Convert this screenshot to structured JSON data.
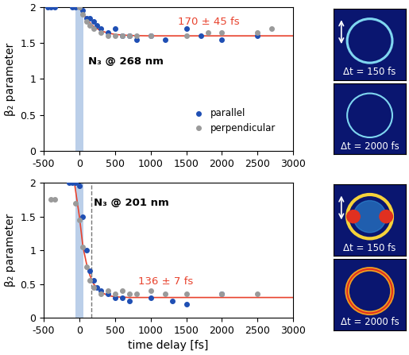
{
  "chart_data": [
    {
      "type": "scatter",
      "y_label": "β₂ parameter",
      "xlim": [
        -500,
        3000
      ],
      "xticks": [
        -500,
        0,
        500,
        1000,
        1500,
        2000,
        2500,
        3000
      ],
      "ylim": [
        0,
        2
      ],
      "yticks": [
        0,
        0.5,
        1,
        1.5,
        2
      ],
      "legend": "lower right",
      "annotations": [
        {
          "text": "N₃ @ 268 nm",
          "color": "#000000"
        },
        {
          "text": "170 ± 45 fs",
          "color": "#e8432e"
        }
      ],
      "shaded_region": [
        -60,
        60
      ],
      "series": [
        {
          "name": "parallel",
          "color": "#1f4fb4",
          "marker": "o",
          "x": [
            -450,
            -400,
            -350,
            -100,
            -50,
            50,
            100,
            150,
            200,
            250,
            300,
            400,
            500,
            600,
            700,
            800,
            1000,
            1200,
            1500,
            1700,
            2000,
            2500
          ],
          "values": [
            2.0,
            2.0,
            2.0,
            2.0,
            2.0,
            1.95,
            1.85,
            1.85,
            1.8,
            1.75,
            1.7,
            1.65,
            1.7,
            1.6,
            1.6,
            1.55,
            1.6,
            1.55,
            1.7,
            1.6,
            1.55,
            1.6
          ]
        },
        {
          "name": "perpendicular",
          "color": "#9a9a9a",
          "marker": "o",
          "x": [
            0,
            50,
            100,
            150,
            200,
            300,
            400,
            500,
            600,
            700,
            800,
            1000,
            1500,
            1800,
            2000,
            2500,
            2700
          ],
          "values": [
            2.0,
            1.9,
            1.8,
            1.75,
            1.7,
            1.65,
            1.6,
            1.6,
            1.6,
            1.6,
            1.6,
            1.6,
            1.6,
            1.65,
            1.65,
            1.65,
            1.7
          ]
        }
      ],
      "fit": {
        "color": "#e8432e",
        "x": [
          0,
          50,
          100,
          150,
          200,
          300,
          400,
          500,
          700,
          1000,
          1500,
          2000,
          2500,
          3000
        ],
        "values": [
          2.0,
          1.91,
          1.84,
          1.78,
          1.73,
          1.67,
          1.64,
          1.62,
          1.605,
          1.6,
          1.6,
          1.6,
          1.6,
          1.6
        ]
      },
      "snapshots": [
        "Δt = 150 fs",
        "Δt = 2000 fs"
      ]
    },
    {
      "type": "scatter",
      "x_label": "time delay [fs]",
      "y_label": "β₂ parameter",
      "xlim": [
        -500,
        3000
      ],
      "xticks": [
        -500,
        0,
        500,
        1000,
        1500,
        2000,
        2500,
        3000
      ],
      "ylim": [
        0,
        2
      ],
      "yticks": [
        0,
        0.5,
        1,
        1.5,
        2
      ],
      "annotations": [
        {
          "text": "N₃ @ 201 nm",
          "color": "#000000"
        },
        {
          "text": "136 ± 7 fs",
          "color": "#e8432e"
        }
      ],
      "shaded_region": [
        -60,
        60
      ],
      "vline": 170,
      "series": [
        {
          "name": "parallel",
          "color": "#1f4fb4",
          "marker": "o",
          "x": [
            -150,
            -100,
            -50,
            0,
            50,
            100,
            150,
            200,
            250,
            300,
            400,
            500,
            600,
            700,
            1000,
            1300,
            1500,
            2000
          ],
          "values": [
            2.0,
            2.0,
            2.0,
            1.95,
            1.5,
            1.0,
            0.7,
            0.55,
            0.45,
            0.4,
            0.35,
            0.3,
            0.3,
            0.25,
            0.3,
            0.25,
            0.2,
            0.35
          ]
        },
        {
          "name": "perpendicular",
          "color": "#9a9a9a",
          "marker": "o",
          "x": [
            -400,
            -350,
            -50,
            0,
            50,
            100,
            150,
            200,
            300,
            400,
            500,
            600,
            700,
            800,
            1000,
            1200,
            1500,
            2000,
            2500
          ],
          "values": [
            1.75,
            1.75,
            1.7,
            1.45,
            1.05,
            0.75,
            0.55,
            0.45,
            0.35,
            0.4,
            0.35,
            0.4,
            0.35,
            0.35,
            0.4,
            0.35,
            0.35,
            0.35,
            0.35
          ]
        }
      ],
      "fit": {
        "color": "#e8432e",
        "x": [
          -70,
          0,
          50,
          100,
          150,
          200,
          300,
          400,
          500,
          700,
          1000,
          3000
        ],
        "values": [
          2.0,
          1.5,
          1.05,
          0.8,
          0.62,
          0.5,
          0.38,
          0.33,
          0.31,
          0.3,
          0.3,
          0.3
        ]
      },
      "snapshots": [
        "Δt = 150 fs",
        "Δt = 2000 fs"
      ]
    }
  ]
}
